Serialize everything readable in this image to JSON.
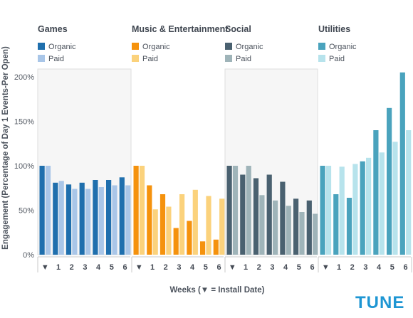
{
  "brand": {
    "text": "TUNE",
    "color": "#1e96d3"
  },
  "chart_data": {
    "type": "bar",
    "ylabel": "Engagement (Percentage of Day 1 Events-Per Open)",
    "xlabel": "Weeks (▼ = Install Date)",
    "ylim": [
      0,
      210
    ],
    "y_ticks": [
      0,
      50,
      100,
      150,
      200
    ],
    "y_tick_labels": [
      "0%",
      "50%",
      "100%",
      "150%",
      "200%"
    ],
    "categories": [
      "▼",
      "1",
      "2",
      "3",
      "4",
      "5",
      "6"
    ],
    "grid": false,
    "groups": [
      {
        "title": "Games",
        "shaded": true,
        "series": [
          {
            "name": "Organic",
            "color": "#1f6fad",
            "values": [
              100,
              81,
              79,
              81,
              84,
              84,
              87
            ]
          },
          {
            "name": "Paid",
            "color": "#a9c6e8",
            "values": [
              100,
              83,
              74,
              74,
              76,
              78,
              78
            ]
          }
        ]
      },
      {
        "title": "Music & Entertainment",
        "shaded": false,
        "series": [
          {
            "name": "Organic",
            "color": "#f5920d",
            "values": [
              100,
              78,
              68,
              30,
              38,
              15,
              17
            ]
          },
          {
            "name": "Paid",
            "color": "#fbd27c",
            "values": [
              100,
              51,
              54,
              68,
              73,
              66,
              63
            ]
          }
        ]
      },
      {
        "title": "Social",
        "shaded": true,
        "series": [
          {
            "name": "Organic",
            "color": "#4a6170",
            "values": [
              100,
              90,
              86,
              90,
              82,
              63,
              61
            ]
          },
          {
            "name": "Paid",
            "color": "#9fb4b9",
            "values": [
              100,
              100,
              67,
              61,
              55,
              48,
              46
            ]
          }
        ]
      },
      {
        "title": "Utilities",
        "shaded": false,
        "series": [
          {
            "name": "Organic",
            "color": "#4aa3bd",
            "values": [
              100,
              68,
              64,
              105,
              140,
              165,
              205
            ]
          },
          {
            "name": "Paid",
            "color": "#b7e3ec",
            "values": [
              100,
              99,
              102,
              109,
              115,
              127,
              140
            ]
          }
        ]
      }
    ]
  }
}
